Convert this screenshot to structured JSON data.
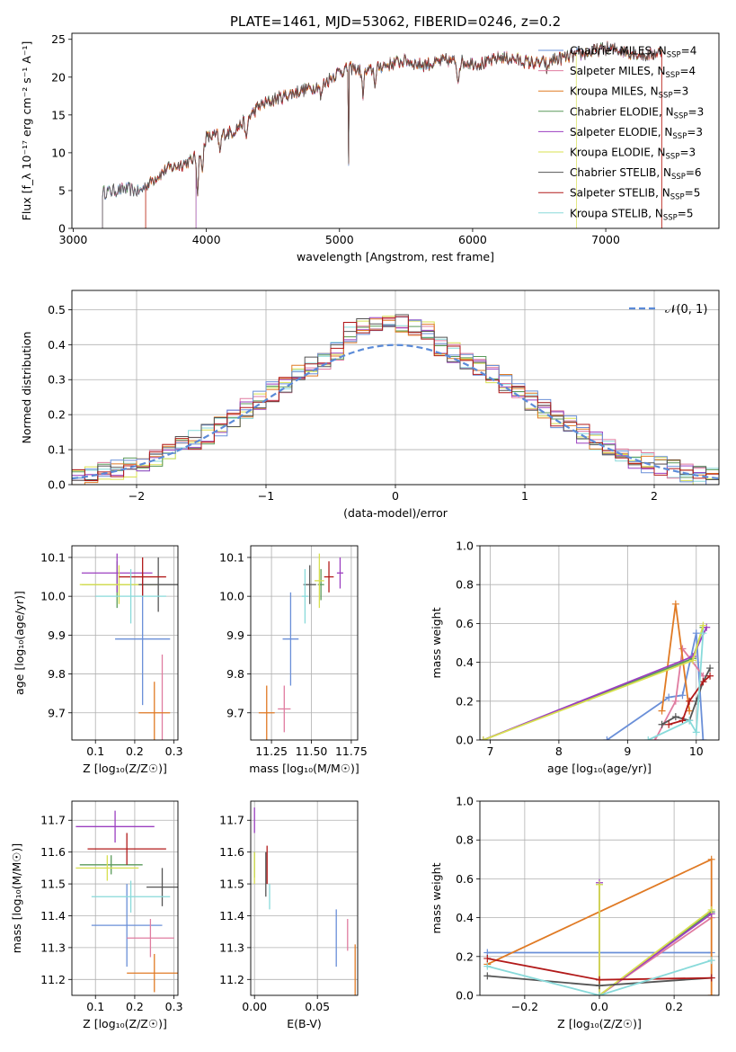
{
  "figure": {
    "title": "PLATE=1461, MJD=53062, FIBERID=0246, z=0.2"
  },
  "colors": {
    "Chabrier MILES": "#6a8fd8",
    "Salpeter MILES": "#e07ca0",
    "Kroupa MILES": "#e07a24",
    "Chabrier ELODIE": "#5a9a5a",
    "Salpeter ELODIE": "#9b3fc0",
    "Kroupa ELODIE": "#d8e050",
    "Chabrier STELIB": "#555555",
    "Salpeter STELIB": "#b21a1a",
    "Kroupa STELIB": "#88dada",
    "normal": "#5b8bd8",
    "grid": "#b0b0b0"
  },
  "chart_data": [
    {
      "id": "spectrum",
      "type": "line",
      "xlabel": "wavelength [Angstrom, rest frame]",
      "ylabel": "Flux [f_λ 10⁻¹⁷ erg cm⁻² s⁻¹ A⁻¹]",
      "xlim": [
        2990,
        7850
      ],
      "ylim": [
        0,
        25.8
      ],
      "xticks": [
        3000,
        4000,
        5000,
        6000,
        7000
      ],
      "yticks": [
        0,
        5,
        10,
        15,
        20,
        25
      ],
      "grid": false,
      "legend_position": "right",
      "legend": [
        {
          "label": "Chabrier MILES, N_SSP=4",
          "color_key": "Chabrier MILES"
        },
        {
          "label": "Salpeter MILES, N_SSP=4",
          "color_key": "Salpeter MILES"
        },
        {
          "label": "Kroupa MILES, N_SSP=3",
          "color_key": "Kroupa MILES"
        },
        {
          "label": "Chabrier ELODIE, N_SSP=3",
          "color_key": "Chabrier ELODIE"
        },
        {
          "label": "Salpeter ELODIE, N_SSP=3",
          "color_key": "Salpeter ELODIE"
        },
        {
          "label": "Kroupa ELODIE, N_SSP=3",
          "color_key": "Kroupa ELODIE"
        },
        {
          "label": "Chabrier STELIB, N_SSP=6",
          "color_key": "Chabrier STELIB"
        },
        {
          "label": "Salpeter STELIB, N_SSP=5",
          "color_key": "Salpeter STELIB"
        },
        {
          "label": "Kroupa STELIB, N_SSP=5",
          "color_key": "Kroupa STELIB"
        }
      ],
      "envelope": {
        "x": [
          3220,
          3300,
          3400,
          3500,
          3600,
          3700,
          3800,
          3900,
          4000,
          4100,
          4200,
          4300,
          4400,
          4500,
          4600,
          4700,
          4800,
          4900,
          5000,
          5100,
          5200,
          5300,
          5400,
          5500,
          5600,
          5700,
          5800,
          5900,
          6000,
          6100,
          6200,
          6300,
          6400,
          6500,
          6600,
          6700,
          6800,
          6900,
          7000,
          7100,
          7200,
          7300,
          7420
        ],
        "y": [
          4.8,
          5.0,
          5.2,
          4.9,
          6.5,
          7.8,
          8.4,
          9.0,
          12.0,
          12.4,
          12.8,
          14.4,
          16.2,
          17.0,
          17.6,
          18.2,
          18.6,
          19.4,
          20.8,
          21.2,
          20.6,
          21.4,
          21.8,
          22.2,
          21.6,
          21.8,
          22.2,
          22.0,
          21.9,
          21.8,
          22.6,
          22.4,
          22.0,
          21.8,
          22.3,
          22.6,
          23.0,
          23.4,
          23.8,
          23.6,
          23.2,
          22.8,
          23.4
        ]
      },
      "starts": {
        "Chabrier STELIB": 3220,
        "Kroupa MILES": 3540,
        "Salpeter STELIB": 3540,
        "Salpeter ELODIE": 3920,
        "Kroupa ELODIE": 3920
      },
      "ends": {
        "Salpeter MILES": 7420,
        "Kroupa MILES": 7420,
        "Salpeter STELIB": 7420,
        "Kroupa ELODIE": 6780
      }
    },
    {
      "id": "residuals",
      "type": "histogram",
      "xlabel": "(data-model)/error",
      "ylabel": "Normed distribution",
      "xlim": [
        -2.5,
        2.5
      ],
      "ylim": [
        0,
        0.555
      ],
      "xticks": [
        -2,
        -1,
        0,
        1,
        2
      ],
      "yticks": [
        0.0,
        0.1,
        0.2,
        0.3,
        0.4,
        0.5
      ],
      "grid": true,
      "legend_position": "top-right",
      "legend": [
        {
          "label": "𝒩(0, 1)",
          "color_key": "normal"
        }
      ],
      "bin_width": 0.1
    },
    {
      "id": "age-vs-Z",
      "type": "scatter",
      "xlabel": "Z [log₁₀(Z/Z☉)]",
      "ylabel": "age  [log₁₀(age/yr)]",
      "xlim": [
        0.04,
        0.31
      ],
      "ylim": [
        9.63,
        10.13
      ],
      "xticks": [
        0.1,
        0.2,
        0.3
      ],
      "yticks": [
        9.7,
        9.8,
        9.9,
        10.0,
        10.1
      ],
      "grid": true,
      "points": [
        {
          "key": "Chabrier MILES",
          "x": 0.22,
          "xerr": 0.07,
          "y": 9.89,
          "yerr": 0.17
        },
        {
          "key": "Salpeter MILES",
          "x": 0.27,
          "xerr": 0.0,
          "y": 9.71,
          "yerr": 0.14
        },
        {
          "key": "Kroupa MILES",
          "x": 0.25,
          "xerr": 0.04,
          "y": 9.7,
          "yerr": 0.08
        },
        {
          "key": "Chabrier ELODIE",
          "x": 0.155,
          "xerr": 0.09,
          "y": 10.03,
          "yerr": 0.06
        },
        {
          "key": "Salpeter ELODIE",
          "x": 0.155,
          "xerr": 0.09,
          "y": 10.06,
          "yerr": 0.05
        },
        {
          "key": "Kroupa ELODIE",
          "x": 0.16,
          "xerr": 0.1,
          "y": 10.03,
          "yerr": 0.05
        },
        {
          "key": "Chabrier STELIB",
          "x": 0.26,
          "xerr": 0.05,
          "y": 10.03,
          "yerr": 0.07
        },
        {
          "key": "Salpeter STELIB",
          "x": 0.22,
          "xerr": 0.06,
          "y": 10.05,
          "yerr": 0.05
        },
        {
          "key": "Kroupa STELIB",
          "x": 0.19,
          "xerr": 0.09,
          "y": 10.0,
          "yerr": 0.07
        }
      ]
    },
    {
      "id": "age-vs-mass",
      "type": "scatter",
      "xlabel": "mass [log₁₀(M/M☉)]",
      "ylabel": "",
      "xlim": [
        11.12,
        11.79
      ],
      "ylim": [
        9.63,
        10.13
      ],
      "xticks": [
        11.25,
        11.5,
        11.75
      ],
      "yticks": [
        9.7,
        9.8,
        9.9,
        10.0,
        10.1
      ],
      "grid": true,
      "points": [
        {
          "key": "Chabrier MILES",
          "x": 11.37,
          "xerr": 0.05,
          "y": 9.89,
          "yerr": 0.12
        },
        {
          "key": "Salpeter MILES",
          "x": 11.33,
          "xerr": 0.04,
          "y": 9.71,
          "yerr": 0.06
        },
        {
          "key": "Kroupa MILES",
          "x": 11.22,
          "xerr": 0.05,
          "y": 9.7,
          "yerr": 0.07
        },
        {
          "key": "Chabrier ELODIE",
          "x": 11.56,
          "xerr": 0.02,
          "y": 10.03,
          "yerr": 0.04
        },
        {
          "key": "Salpeter ELODIE",
          "x": 11.68,
          "xerr": 0.02,
          "y": 10.06,
          "yerr": 0.04
        },
        {
          "key": "Kroupa ELODIE",
          "x": 11.55,
          "xerr": 0.03,
          "y": 10.04,
          "yerr": 0.07
        },
        {
          "key": "Chabrier STELIB",
          "x": 11.49,
          "xerr": 0.04,
          "y": 10.03,
          "yerr": 0.05
        },
        {
          "key": "Salpeter STELIB",
          "x": 11.61,
          "xerr": 0.03,
          "y": 10.05,
          "yerr": 0.04
        },
        {
          "key": "Kroupa STELIB",
          "x": 11.46,
          "xerr": 0.02,
          "y": 10.0,
          "yerr": 0.07
        }
      ]
    },
    {
      "id": "weight-vs-age",
      "type": "line",
      "xlabel": "age  [log₁₀(age/yr)]",
      "ylabel": "mass weight",
      "xlim": [
        6.85,
        10.33
      ],
      "ylim": [
        0,
        1.0
      ],
      "xticks": [
        7,
        8,
        9,
        10
      ],
      "yticks": [
        0.0,
        0.2,
        0.4,
        0.6,
        0.8,
        1.0
      ],
      "grid": true,
      "series": [
        {
          "key": "Chabrier MILES",
          "x": [
            8.7,
            9.6,
            9.8,
            10.0,
            10.1
          ],
          "y": [
            0.0,
            0.22,
            0.23,
            0.55,
            0.0
          ]
        },
        {
          "key": "Salpeter MILES",
          "x": [
            9.4,
            9.7,
            9.8,
            10.1
          ],
          "y": [
            0.0,
            0.2,
            0.47,
            0.33
          ]
        },
        {
          "key": "Kroupa MILES",
          "x": [
            9.5,
            9.7,
            9.9
          ],
          "y": [
            0.15,
            0.7,
            0.15
          ]
        },
        {
          "key": "Chabrier ELODIE",
          "x": [
            6.9,
            9.95,
            10.1
          ],
          "y": [
            0.0,
            0.42,
            0.58
          ]
        },
        {
          "key": "Salpeter ELODIE",
          "x": [
            6.9,
            9.95,
            10.15
          ],
          "y": [
            0.0,
            0.43,
            0.58
          ]
        },
        {
          "key": "Kroupa ELODIE",
          "x": [
            6.9,
            9.95,
            10.1
          ],
          "y": [
            0.0,
            0.41,
            0.59
          ]
        },
        {
          "key": "Chabrier STELIB",
          "x": [
            9.5,
            9.7,
            9.9,
            10.0,
            10.1,
            10.2
          ],
          "y": [
            0.08,
            0.12,
            0.1,
            0.2,
            0.3,
            0.37
          ]
        },
        {
          "key": "Salpeter STELIB",
          "x": [
            9.6,
            9.8,
            9.9,
            10.1,
            10.2
          ],
          "y": [
            0.08,
            0.1,
            0.2,
            0.3,
            0.33
          ]
        },
        {
          "key": "Kroupa STELIB",
          "x": [
            9.3,
            9.9,
            10.0,
            10.1
          ],
          "y": [
            0.0,
            0.1,
            0.04,
            0.55
          ]
        }
      ]
    },
    {
      "id": "mass-vs-Z",
      "type": "scatter",
      "xlabel": "Z [log₁₀(Z/Z☉)]",
      "ylabel": "mass [log₁₀(M/M☉)]",
      "xlim": [
        0.04,
        0.31
      ],
      "ylim": [
        11.15,
        11.76
      ],
      "xticks": [
        0.1,
        0.2,
        0.3
      ],
      "yticks": [
        11.2,
        11.3,
        11.4,
        11.5,
        11.6,
        11.7
      ],
      "grid": true,
      "points": [
        {
          "key": "Chabrier MILES",
          "x": 0.18,
          "xerr": 0.09,
          "y": 11.37,
          "yerr": 0.13
        },
        {
          "key": "Salpeter MILES",
          "x": 0.24,
          "xerr": 0.06,
          "y": 11.33,
          "yerr": 0.06
        },
        {
          "key": "Kroupa MILES",
          "x": 0.25,
          "xerr": 0.07,
          "y": 11.22,
          "yerr": 0.06
        },
        {
          "key": "Chabrier ELODIE",
          "x": 0.14,
          "xerr": 0.08,
          "y": 11.56,
          "yerr": 0.03
        },
        {
          "key": "Salpeter ELODIE",
          "x": 0.15,
          "xerr": 0.1,
          "y": 11.68,
          "yerr": 0.05
        },
        {
          "key": "Kroupa ELODIE",
          "x": 0.13,
          "xerr": 0.08,
          "y": 11.55,
          "yerr": 0.04
        },
        {
          "key": "Chabrier STELIB",
          "x": 0.27,
          "xerr": 0.04,
          "y": 11.49,
          "yerr": 0.06
        },
        {
          "key": "Salpeter STELIB",
          "x": 0.18,
          "xerr": 0.1,
          "y": 11.61,
          "yerr": 0.05
        },
        {
          "key": "Kroupa STELIB",
          "x": 0.19,
          "xerr": 0.1,
          "y": 11.46,
          "yerr": 0.05
        }
      ]
    },
    {
      "id": "mass-vs-EBV",
      "type": "scatter",
      "xlabel": "E(B-V)",
      "ylabel": "",
      "xlim": [
        -0.003,
        0.082
      ],
      "ylim": [
        11.15,
        11.76
      ],
      "xticks": [
        0.0,
        0.05
      ],
      "yticks": [
        11.2,
        11.3,
        11.4,
        11.5,
        11.6,
        11.7
      ],
      "grid": true,
      "points": [
        {
          "key": "Chabrier MILES",
          "x": 0.065,
          "y": 11.33,
          "yerr": 0.09
        },
        {
          "key": "Salpeter MILES",
          "x": 0.074,
          "y": 11.34,
          "yerr": 0.05
        },
        {
          "key": "Kroupa MILES",
          "x": 0.08,
          "y": 11.22,
          "yerr": 0.09
        },
        {
          "key": "Chabrier ELODIE",
          "x": 0.0,
          "y": 11.56,
          "yerr": 0.04
        },
        {
          "key": "Salpeter ELODIE",
          "x": 0.0,
          "y": 11.7,
          "yerr": 0.04
        },
        {
          "key": "Kroupa ELODIE",
          "x": 0.0,
          "y": 11.55,
          "yerr": 0.05
        },
        {
          "key": "Chabrier STELIB",
          "x": 0.009,
          "y": 11.53,
          "yerr": 0.07
        },
        {
          "key": "Salpeter STELIB",
          "x": 0.01,
          "y": 11.56,
          "yerr": 0.06
        },
        {
          "key": "Kroupa STELIB",
          "x": 0.012,
          "y": 11.46,
          "yerr": 0.04
        }
      ]
    },
    {
      "id": "weight-vs-Z",
      "type": "line",
      "xlabel": "Z [log₁₀(Z/Z☉)]",
      "ylabel": "mass weight",
      "xlim": [
        -0.32,
        0.32
      ],
      "ylim": [
        0,
        1.0
      ],
      "xticks": [
        -0.2,
        0.0,
        0.2
      ],
      "yticks": [
        0.0,
        0.2,
        0.4,
        0.6,
        0.8,
        1.0
      ],
      "grid": true,
      "series": [
        {
          "key": "Chabrier MILES",
          "x": [
            -0.3,
            0.3
          ],
          "y": [
            0.22,
            0.22
          ]
        },
        {
          "key": "Salpeter MILES",
          "x": [
            0.0,
            0.3
          ],
          "y": [
            0.0,
            0.4
          ]
        },
        {
          "key": "Kroupa MILES",
          "x": [
            -0.3,
            0.3,
            0.3
          ],
          "y": [
            0.16,
            0.7,
            0.0
          ]
        },
        {
          "key": "Chabrier ELODIE",
          "x": [
            0.0,
            0.0,
            0.3
          ],
          "y": [
            0.57,
            0.0,
            0.43
          ]
        },
        {
          "key": "Salpeter ELODIE",
          "x": [
            0.0,
            0.0,
            0.3
          ],
          "y": [
            0.58,
            0.0,
            0.42
          ]
        },
        {
          "key": "Kroupa ELODIE",
          "x": [
            0.0,
            0.0,
            0.3
          ],
          "y": [
            0.57,
            0.0,
            0.44
          ]
        },
        {
          "key": "Chabrier STELIB",
          "x": [
            -0.3,
            0.0,
            0.3
          ],
          "y": [
            0.1,
            0.05,
            0.09
          ]
        },
        {
          "key": "Salpeter STELIB",
          "x": [
            -0.3,
            0.0,
            0.3
          ],
          "y": [
            0.19,
            0.08,
            0.09
          ]
        },
        {
          "key": "Kroupa STELIB",
          "x": [
            -0.3,
            0.0,
            0.3
          ],
          "y": [
            0.15,
            0.0,
            0.18
          ]
        }
      ]
    }
  ]
}
